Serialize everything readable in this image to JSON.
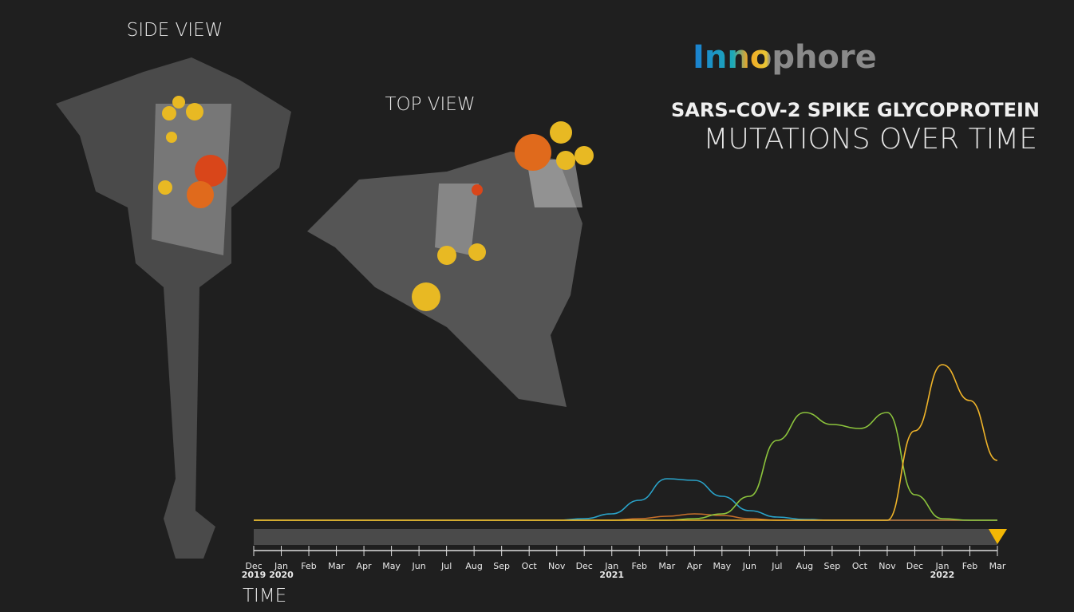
{
  "side_view_label": "SIDE VIEW",
  "top_view_label": "TOP VIEW",
  "logo": "Innophore",
  "title": "SARS-COV-2 SPIKE GLYCOPROTEIN",
  "subtitle": "MUTATIONS OVER TIME",
  "chart_data": {
    "type": "line",
    "x_title": "TIME",
    "categories": [
      "Dec",
      "Jan",
      "Feb",
      "Mar",
      "Apr",
      "May",
      "Jun",
      "Jul",
      "Aug",
      "Sep",
      "Oct",
      "Nov",
      "Dec",
      "Jan",
      "Feb",
      "Mar",
      "Apr",
      "May",
      "Jun",
      "Jul",
      "Aug",
      "Sep",
      "Oct",
      "Nov",
      "Dec",
      "Jan",
      "Feb",
      "Mar"
    ],
    "year_labels": [
      "2019",
      "2020",
      null,
      null,
      null,
      null,
      null,
      null,
      null,
      null,
      null,
      null,
      null,
      "2021",
      null,
      null,
      null,
      null,
      null,
      null,
      null,
      null,
      null,
      null,
      null,
      "2022",
      null,
      null
    ],
    "series": [
      {
        "color": "#2aa3c9",
        "values": [
          0,
          0,
          0,
          0,
          0,
          0,
          0,
          0,
          0,
          0,
          0,
          0,
          2,
          8,
          25,
          52,
          50,
          30,
          12,
          4,
          1,
          0,
          0,
          0,
          0,
          0,
          0,
          0
        ]
      },
      {
        "color": "#c8702a",
        "values": [
          0,
          0,
          0,
          0,
          0,
          0,
          0,
          0,
          0,
          0,
          0,
          0,
          0,
          0,
          2,
          5,
          8,
          6,
          2,
          0,
          0,
          0,
          0,
          0,
          0,
          0,
          0,
          0
        ]
      },
      {
        "color": "#8cc43c",
        "values": [
          0,
          0,
          0,
          0,
          0,
          0,
          0,
          0,
          0,
          0,
          0,
          0,
          0,
          0,
          0,
          0,
          2,
          8,
          30,
          100,
          135,
          120,
          115,
          135,
          32,
          2,
          0,
          0
        ]
      },
      {
        "color": "#f0b429",
        "values": [
          0,
          0,
          0,
          0,
          0,
          0,
          0,
          0,
          0,
          0,
          0,
          0,
          0,
          0,
          0,
          0,
          0,
          0,
          0,
          0,
          0,
          0,
          0,
          0,
          112,
          195,
          150,
          75
        ]
      }
    ]
  }
}
